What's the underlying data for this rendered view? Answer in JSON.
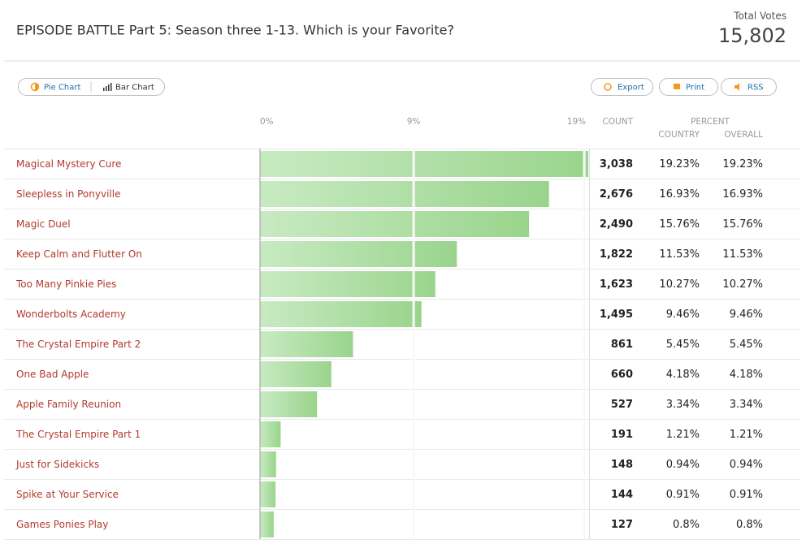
{
  "chart_data": {
    "type": "bar",
    "title": "EPISODE BATTLE Part 5: Season three 1-13. Which is your Favorite?",
    "total_votes_label": "Total Votes",
    "total_votes": "15,802",
    "buttons": [
      "Pie Chart",
      "Bar Chart",
      "Export",
      "Print",
      "RSS"
    ],
    "columns": [
      "COUNT",
      "PERCENT",
      "COUNTRY",
      "OVERALL"
    ],
    "categories": [
      "Magical Mystery Cure",
      "Sleepless in Ponyville",
      "Magic Duel",
      "Keep Calm and Flutter On",
      "Too Many Pinkie Pies",
      "Wonderbolts Academy",
      "The Crystal Empire Part 2",
      "One Bad Apple",
      "Apple Family Reunion",
      "The Crystal Empire Part 1",
      "Just for Sidekicks",
      "Spike at Your Service",
      "Games Ponies Play"
    ],
    "counts": [
      "3,038",
      "2,676",
      "2,490",
      "1,822",
      "1,623",
      "1,495",
      "861",
      "660",
      "527",
      "191",
      "148",
      "144",
      "127"
    ],
    "country_labels": [
      "19.23%",
      "16.93%",
      "15.76%",
      "11.53%",
      "10.27%",
      "9.46%",
      "5.45%",
      "4.18%",
      "3.34%",
      "1.21%",
      "0.94%",
      "0.91%",
      "0.8%"
    ],
    "values": [
      19.23,
      16.93,
      15.76,
      11.53,
      10.27,
      9.46,
      5.45,
      4.18,
      3.34,
      1.21,
      0.94,
      0.91,
      0.8
    ],
    "value_labels": [
      "19.23%",
      "16.93%",
      "15.76%",
      "11.53%",
      "10.27%",
      "9.46%",
      "5.45%",
      "4.18%",
      "3.34%",
      "1.21%",
      "0.94%",
      "0.91%",
      "0.8%"
    ],
    "color": "#b5e2ad",
    "xlim": [
      0,
      19.23
    ],
    "xticks": [
      {
        "value": 0,
        "label": "0%"
      },
      {
        "value": 9,
        "label": "9%"
      },
      {
        "value": 19,
        "label": "19%"
      }
    ],
    "grid": true
  }
}
